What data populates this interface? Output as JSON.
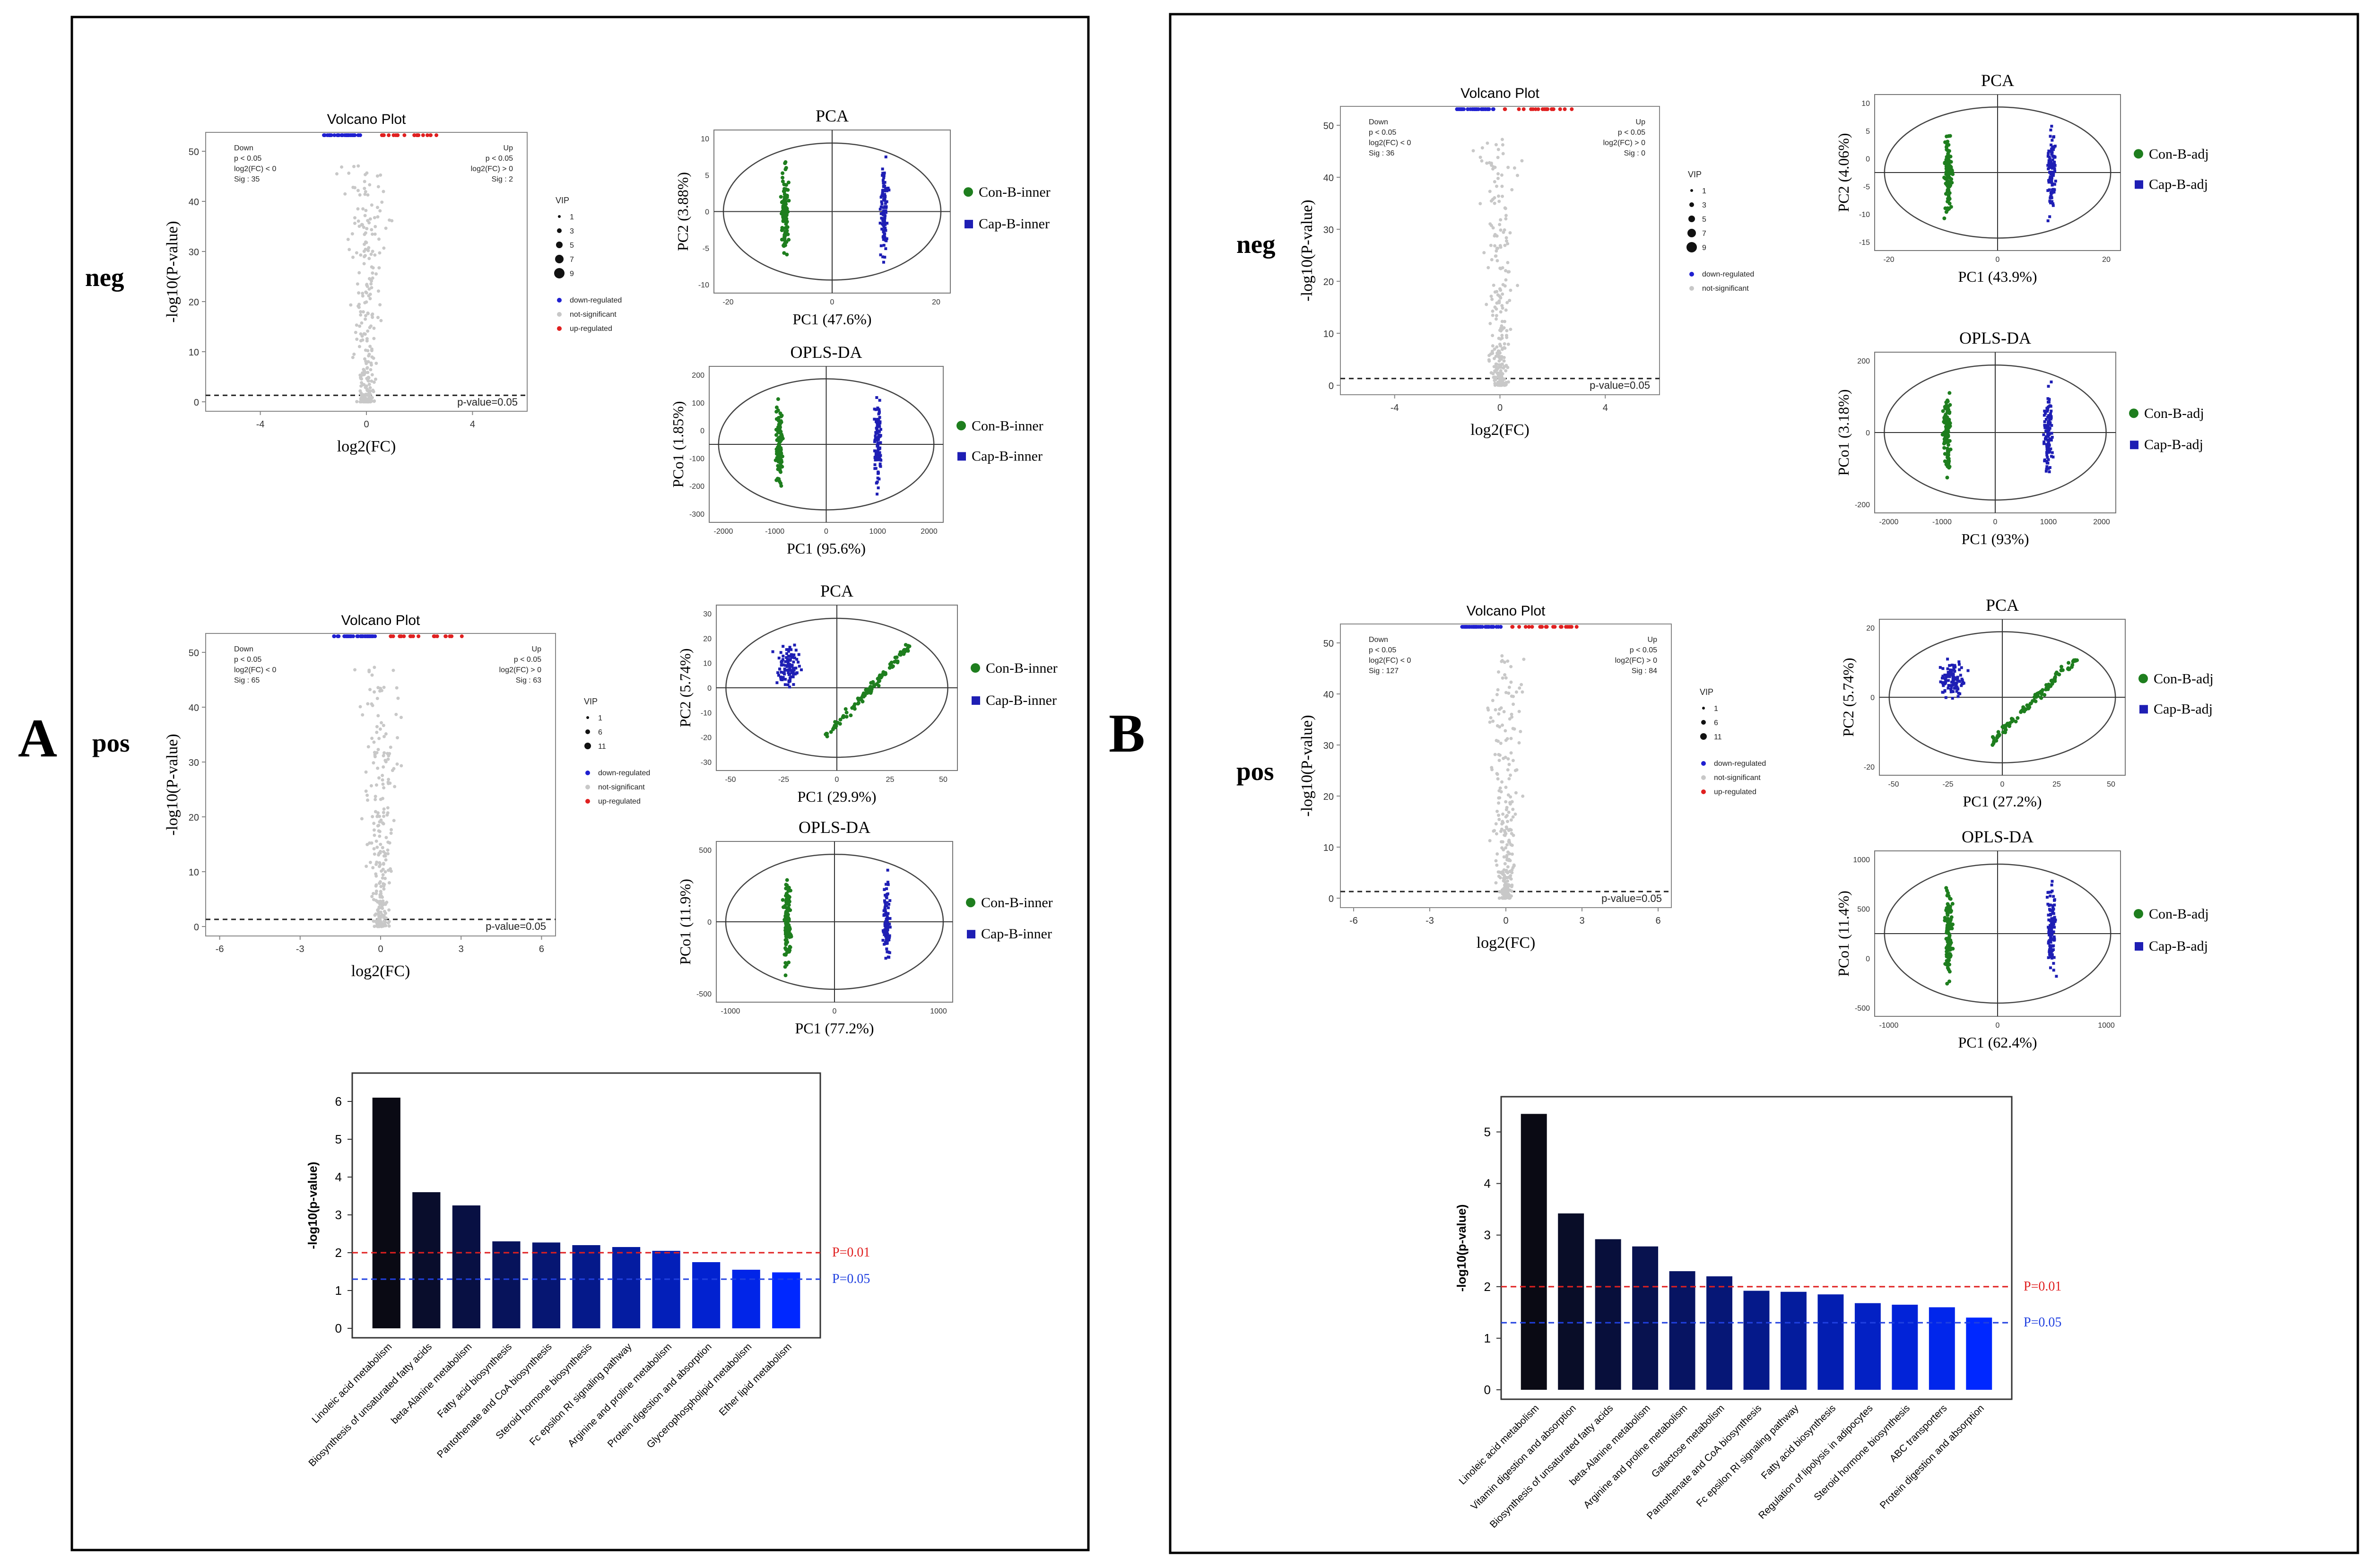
{
  "panels": [
    {
      "label": "A",
      "neg": {
        "row_label": "neg",
        "volcano": {
          "title": "Volcano Plot",
          "xlabel": "log2(FC)",
          "ylabel": "-log10(P-value)",
          "xticks": [
            "-4",
            "0",
            "4"
          ],
          "yticks": [
            "0",
            "10",
            "20",
            "30",
            "40",
            "50"
          ],
          "down_box": [
            "Down",
            "p < 0.05",
            "log2(FC) < 0",
            "Sig : 35"
          ],
          "up_box": [
            "Up",
            "p < 0.05",
            "log2(FC) > 0",
            "Sig : 2"
          ],
          "threshold_label": "p-value=0.05",
          "legend_title": "VIP",
          "vip_sizes": [
            "1",
            "3",
            "5",
            "7",
            "9"
          ],
          "legend_items": [
            "down-regulated",
            "not-significant",
            "up-regulated"
          ]
        },
        "pca": {
          "title": "PCA",
          "xlabel": "PC1 (47.6%)",
          "ylabel": "PC2 (3.88%)",
          "xticks": [
            "-20",
            "0",
            "20"
          ],
          "yticks": [
            "10",
            "5",
            "0",
            "-5",
            "-10"
          ],
          "legend": [
            "Con-B-inner",
            "Cap-B-inner"
          ]
        },
        "opls": {
          "title": "OPLS-DA",
          "xlabel": "PC1 (95.6%)",
          "ylabel": "PCo1 (1.85%)",
          "xticks": [
            "-2000",
            "-1000",
            "0",
            "1000",
            "2000"
          ],
          "yticks": [
            "200",
            "100",
            "0",
            "-100",
            "-200",
            "-300"
          ],
          "legend": [
            "Con-B-inner",
            "Cap-B-inner"
          ]
        }
      },
      "pos": {
        "row_label": "pos",
        "volcano": {
          "title": "Volcano Plot",
          "xlabel": "log2(FC)",
          "ylabel": "-log10(P-value)",
          "xticks": [
            "-6",
            "-3",
            "0",
            "3",
            "6"
          ],
          "yticks": [
            "0",
            "10",
            "20",
            "30",
            "40",
            "50"
          ],
          "down_box": [
            "Down",
            "p < 0.05",
            "log2(FC) < 0",
            "Sig : 65"
          ],
          "up_box": [
            "Up",
            "p < 0.05",
            "log2(FC) > 0",
            "Sig : 63"
          ],
          "threshold_label": "p-value=0.05",
          "legend_title": "VIP",
          "vip_sizes": [
            "1",
            "6",
            "11"
          ],
          "legend_items": [
            "down-regulated",
            "not-significant",
            "up-regulated"
          ]
        },
        "pca": {
          "title": "PCA",
          "xlabel": "PC1 (29.9%)",
          "ylabel": "PC2 (5.74%)",
          "xticks": [
            "-50",
            "-25",
            "0",
            "25",
            "50"
          ],
          "yticks": [
            "30",
            "20",
            "10",
            "0",
            "-10",
            "-20",
            "-30"
          ],
          "legend": [
            "Con-B-inner",
            "Cap-B-inner"
          ]
        },
        "opls": {
          "title": "OPLS-DA",
          "xlabel": "PC1 (77.2%)",
          "ylabel": "PCo1 (11.9%)",
          "xticks": [
            "-1000",
            "0",
            "1000"
          ],
          "yticks": [
            "500",
            "0",
            "-500"
          ],
          "legend": [
            "Con-B-inner",
            "Cap-B-inner"
          ]
        }
      },
      "bar": {
        "ylabel": "-log10(p-value)",
        "yticks": [
          "0",
          "1",
          "2",
          "3",
          "4",
          "5",
          "6"
        ],
        "p001": "P=0.01",
        "p005": "P=0.05"
      }
    },
    {
      "label": "B",
      "neg": {
        "row_label": "neg",
        "volcano": {
          "title": "Volcano Plot",
          "xlabel": "log2(FC)",
          "ylabel": "-log10(P-value)",
          "xticks": [
            "-4",
            "0",
            "4"
          ],
          "yticks": [
            "0",
            "10",
            "20",
            "30",
            "40",
            "50"
          ],
          "down_box": [
            "Down",
            "p < 0.05",
            "log2(FC) < 0",
            "Sig : 36"
          ],
          "up_box": [
            "Up",
            "p < 0.05",
            "log2(FC) > 0",
            "Sig : 0"
          ],
          "threshold_label": "p-value=0.05",
          "legend_title": "VIP",
          "vip_sizes": [
            "1",
            "3",
            "5",
            "7",
            "9"
          ],
          "legend_items": [
            "down-regulated",
            "not-significant"
          ]
        },
        "pca": {
          "title": "PCA",
          "xlabel": "PC1 (43.9%)",
          "ylabel": "PC2 (4.06%)",
          "xticks": [
            "-20",
            "0",
            "20"
          ],
          "yticks": [
            "10",
            "5",
            "0",
            "-5",
            "-10",
            "-15"
          ],
          "legend": [
            "Con-B-adj",
            "Cap-B-adj"
          ]
        },
        "opls": {
          "title": "OPLS-DA",
          "xlabel": "PC1 (93%)",
          "ylabel": "PCo1 (3.18%)",
          "xticks": [
            "-2000",
            "-1000",
            "0",
            "1000",
            "2000"
          ],
          "yticks": [
            "200",
            "0",
            "-200"
          ],
          "legend": [
            "Con-B-adj",
            "Cap-B-adj"
          ]
        }
      },
      "pos": {
        "row_label": "pos",
        "volcano": {
          "title": "Volcano Plot",
          "xlabel": "log2(FC)",
          "ylabel": "-log10(P-value)",
          "xticks": [
            "-6",
            "-3",
            "0",
            "3",
            "6"
          ],
          "yticks": [
            "0",
            "10",
            "20",
            "30",
            "40",
            "50"
          ],
          "down_box": [
            "Down",
            "p < 0.05",
            "log2(FC) < 0",
            "Sig : 127"
          ],
          "up_box": [
            "Up",
            "p < 0.05",
            "log2(FC) > 0",
            "Sig : 84"
          ],
          "threshold_label": "p-value=0.05",
          "legend_title": "VIP",
          "vip_sizes": [
            "1",
            "6",
            "11"
          ],
          "legend_items": [
            "down-regulated",
            "not-significant",
            "up-regulated"
          ]
        },
        "pca": {
          "title": "PCA",
          "xlabel": "PC1 (27.2%)",
          "ylabel": "PC2 (5.74%)",
          "xticks": [
            "-50",
            "-25",
            "0",
            "25",
            "50"
          ],
          "yticks": [
            "20",
            "0",
            "-20"
          ],
          "legend": [
            "Con-B-adj",
            "Cap-B-adj"
          ]
        },
        "opls": {
          "title": "OPLS-DA",
          "xlabel": "PC1 (62.4%)",
          "ylabel": "PCo1 (11.4%)",
          "xticks": [
            "-1000",
            "0",
            "1000"
          ],
          "yticks": [
            "1000",
            "500",
            "0",
            "-500"
          ],
          "legend": [
            "Con-B-adj",
            "Cap-B-adj"
          ]
        }
      },
      "bar": {
        "ylabel": "-log10(p-value)",
        "yticks": [
          "0",
          "1",
          "2",
          "3",
          "4",
          "5"
        ],
        "p001": "P=0.01",
        "p005": "P=0.05"
      }
    }
  ],
  "colors": {
    "con": "#1e7e1e",
    "cap": "#1e1eb4",
    "down": "#2020d0",
    "up": "#e02020",
    "ns": "#c8c8c8",
    "p001": "#e02020",
    "p005": "#2040e0"
  },
  "chart_data": [
    {
      "type": "bar",
      "panel": "A",
      "ylabel": "-log10(p-value)",
      "ylim": [
        0,
        6.5
      ],
      "categories": [
        "Linoleic acid metabolism",
        "Biosynthesis of unsaturated fatty acids",
        "beta-Alanine metabolism",
        "Fatty acid biosynthesis",
        "Pantothenate and CoA biosynthesis",
        "Steroid hormone biosynthesis",
        "Fc epsilon RI signaling pathway",
        "Arginine and proline metabolism",
        "Protein digestion and absorption",
        "Glycerophospholipid metabolism",
        "Ether lipid metabolism"
      ],
      "values": [
        6.1,
        3.6,
        3.25,
        2.3,
        2.27,
        2.2,
        2.15,
        2.05,
        1.75,
        1.55,
        1.48
      ],
      "thresholds": [
        2.0,
        1.3
      ]
    },
    {
      "type": "bar",
      "panel": "B",
      "ylabel": "-log10(p-value)",
      "ylim": [
        0,
        5.5
      ],
      "categories": [
        "Linoleic acid metabolism",
        "Vitamin digestion and absorption",
        "Biosynthesis of unsaturated fatty acids",
        "beta-Alanine metabolism",
        "Arginine and proline metabolism",
        "Galactose metabolism",
        "Pantothenate and CoA biosynthesis",
        "Fc epsilon RI signaling pathway",
        "Fatty acid biosynthesis",
        "Regulation of lipolysis in adipocytes",
        "Steroid hormone biosynthesis",
        "ABC transporters",
        "Protein digestion and absorption"
      ],
      "values": [
        5.35,
        3.42,
        2.92,
        2.78,
        2.3,
        2.2,
        1.92,
        1.9,
        1.85,
        1.68,
        1.65,
        1.6,
        1.4
      ],
      "thresholds": [
        2.0,
        1.3
      ]
    }
  ]
}
